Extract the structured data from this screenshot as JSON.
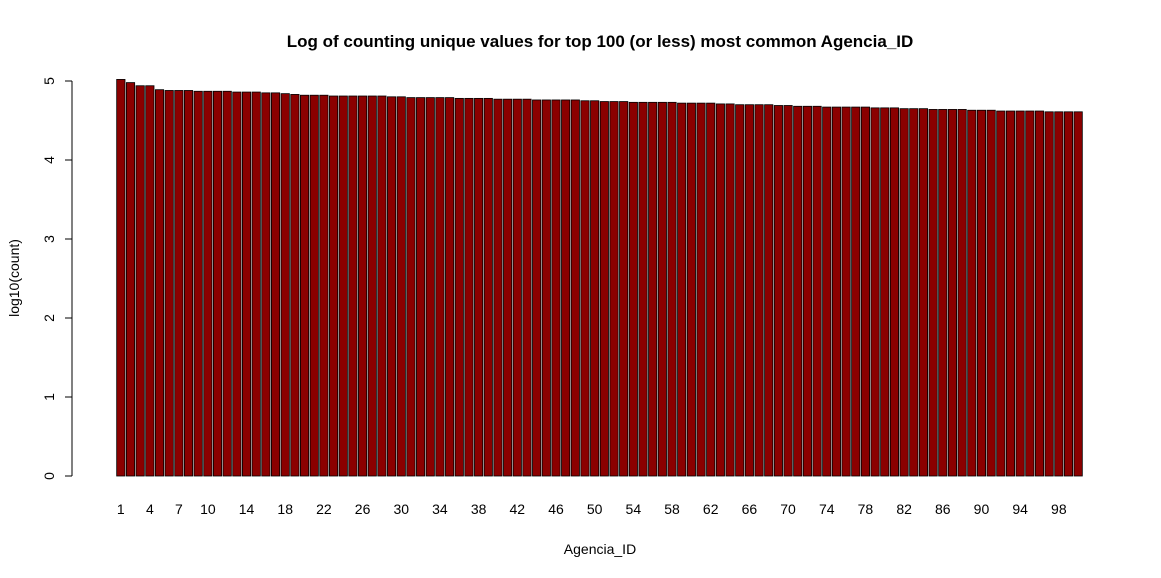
{
  "chart_data": {
    "type": "bar",
    "title": "Log of counting unique values for top 100 (or less) most common Agencia_ID",
    "xlabel": "Agencia_ID",
    "ylabel": "log10(count)",
    "ylim": [
      0,
      5
    ],
    "yticks": [
      0,
      1,
      2,
      3,
      4,
      5
    ],
    "bar_color": "#8B0000",
    "categories": [
      "1",
      "2",
      "3",
      "4",
      "5",
      "6",
      "7",
      "8",
      "9",
      "10",
      "11",
      "12",
      "13",
      "14",
      "15",
      "16",
      "17",
      "18",
      "19",
      "20",
      "21",
      "22",
      "23",
      "24",
      "25",
      "26",
      "27",
      "28",
      "29",
      "30",
      "31",
      "32",
      "33",
      "34",
      "35",
      "36",
      "37",
      "38",
      "39",
      "40",
      "41",
      "42",
      "43",
      "44",
      "45",
      "46",
      "47",
      "48",
      "49",
      "50",
      "51",
      "52",
      "53",
      "54",
      "55",
      "56",
      "57",
      "58",
      "59",
      "60",
      "61",
      "62",
      "63",
      "64",
      "65",
      "66",
      "67",
      "68",
      "69",
      "70",
      "71",
      "72",
      "73",
      "74",
      "75",
      "76",
      "77",
      "78",
      "79",
      "80",
      "81",
      "82",
      "83",
      "84",
      "85",
      "86",
      "87",
      "88",
      "89",
      "90",
      "91",
      "92",
      "93",
      "94",
      "95",
      "96",
      "97",
      "98",
      "99",
      "100"
    ],
    "shown_tick_labels": [
      "1",
      "4",
      "7",
      "10",
      "14",
      "18",
      "22",
      "26",
      "30",
      "34",
      "38",
      "42",
      "46",
      "50",
      "54",
      "58",
      "62",
      "66",
      "70",
      "74",
      "78",
      "82",
      "86",
      "90",
      "94",
      "98"
    ],
    "values": [
      5.02,
      4.98,
      4.94,
      4.94,
      4.89,
      4.88,
      4.88,
      4.88,
      4.87,
      4.87,
      4.87,
      4.87,
      4.86,
      4.86,
      4.86,
      4.85,
      4.85,
      4.84,
      4.83,
      4.82,
      4.82,
      4.82,
      4.81,
      4.81,
      4.81,
      4.81,
      4.81,
      4.81,
      4.8,
      4.8,
      4.79,
      4.79,
      4.79,
      4.79,
      4.79,
      4.78,
      4.78,
      4.78,
      4.78,
      4.77,
      4.77,
      4.77,
      4.77,
      4.76,
      4.76,
      4.76,
      4.76,
      4.76,
      4.75,
      4.75,
      4.74,
      4.74,
      4.74,
      4.73,
      4.73,
      4.73,
      4.73,
      4.73,
      4.72,
      4.72,
      4.72,
      4.72,
      4.71,
      4.71,
      4.7,
      4.7,
      4.7,
      4.7,
      4.69,
      4.69,
      4.68,
      4.68,
      4.68,
      4.67,
      4.67,
      4.67,
      4.67,
      4.67,
      4.66,
      4.66,
      4.66,
      4.65,
      4.65,
      4.65,
      4.64,
      4.64,
      4.64,
      4.64,
      4.63,
      4.63,
      4.63,
      4.62,
      4.62,
      4.62,
      4.62,
      4.62,
      4.61,
      4.61,
      4.61,
      4.61
    ]
  }
}
